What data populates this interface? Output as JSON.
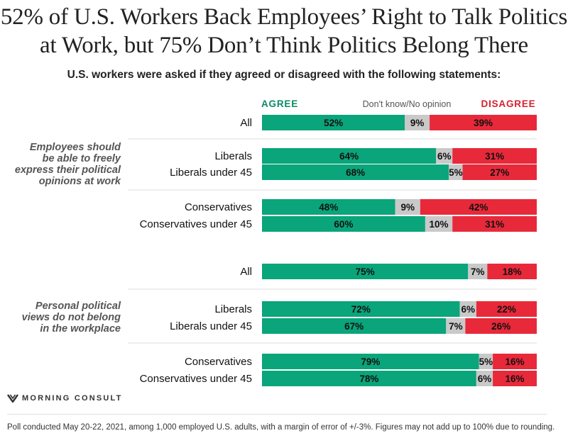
{
  "chart_data": {
    "type": "bar",
    "stacked": true,
    "horizontal": true,
    "title": "52% of U.S. Workers Back Employees’ Right to Talk Politics at Work, but 75% Don’t Think Politics Belong There",
    "title_lines": [
      "52% of U.S. Workers Back Employees’ Right to Talk Politics",
      "at Work, but 75% Don’t Think Politics Belong There"
    ],
    "subtitle": "U.S. workers were asked if they agreed or disagreed with the following statements:",
    "legend": {
      "agree": "AGREE",
      "neutral": "Don't know/No opinion",
      "disagree": "DISAGREE"
    },
    "colors": {
      "agree": "#0aa57a",
      "neutral": "#c9c9c9",
      "disagree": "#e8293a",
      "agree_text": "#0a8a64",
      "disagree_text": "#d6202f"
    },
    "xlim": [
      0,
      100
    ],
    "groups": [
      {
        "statement_lines": [
          "Employees should",
          "be able to freely",
          "express their political",
          "opinions at work"
        ],
        "rows": [
          {
            "label": "All",
            "agree": 52,
            "neutral": 9,
            "disagree": 39
          },
          {
            "label": "Liberals",
            "agree": 64,
            "neutral": 6,
            "disagree": 31
          },
          {
            "label": "Liberals under 45",
            "agree": 68,
            "neutral": 5,
            "disagree": 27
          },
          {
            "label": "Conservatives",
            "agree": 48,
            "neutral": 9,
            "disagree": 42
          },
          {
            "label": "Conservatives under 45",
            "agree": 60,
            "neutral": 10,
            "disagree": 31
          }
        ]
      },
      {
        "statement_lines": [
          "Personal political",
          "views do not belong",
          "in the workplace"
        ],
        "rows": [
          {
            "label": "All",
            "agree": 75,
            "neutral": 7,
            "disagree": 18
          },
          {
            "label": "Liberals",
            "agree": 72,
            "neutral": 6,
            "disagree": 22
          },
          {
            "label": "Liberals under 45",
            "agree": 67,
            "neutral": 7,
            "disagree": 26
          },
          {
            "label": "Conservatives",
            "agree": 79,
            "neutral": 5,
            "disagree": 16
          },
          {
            "label": "Conservatives under 45",
            "agree": 78,
            "neutral": 6,
            "disagree": 16
          }
        ]
      }
    ]
  },
  "brand": {
    "name": "MORNING CONSULT"
  },
  "footnote": "Poll conducted May 20-22, 2021, among 1,000 employed U.S. adults, with a margin of error of +/-3%. Figures may not add up to 100% due to rounding."
}
